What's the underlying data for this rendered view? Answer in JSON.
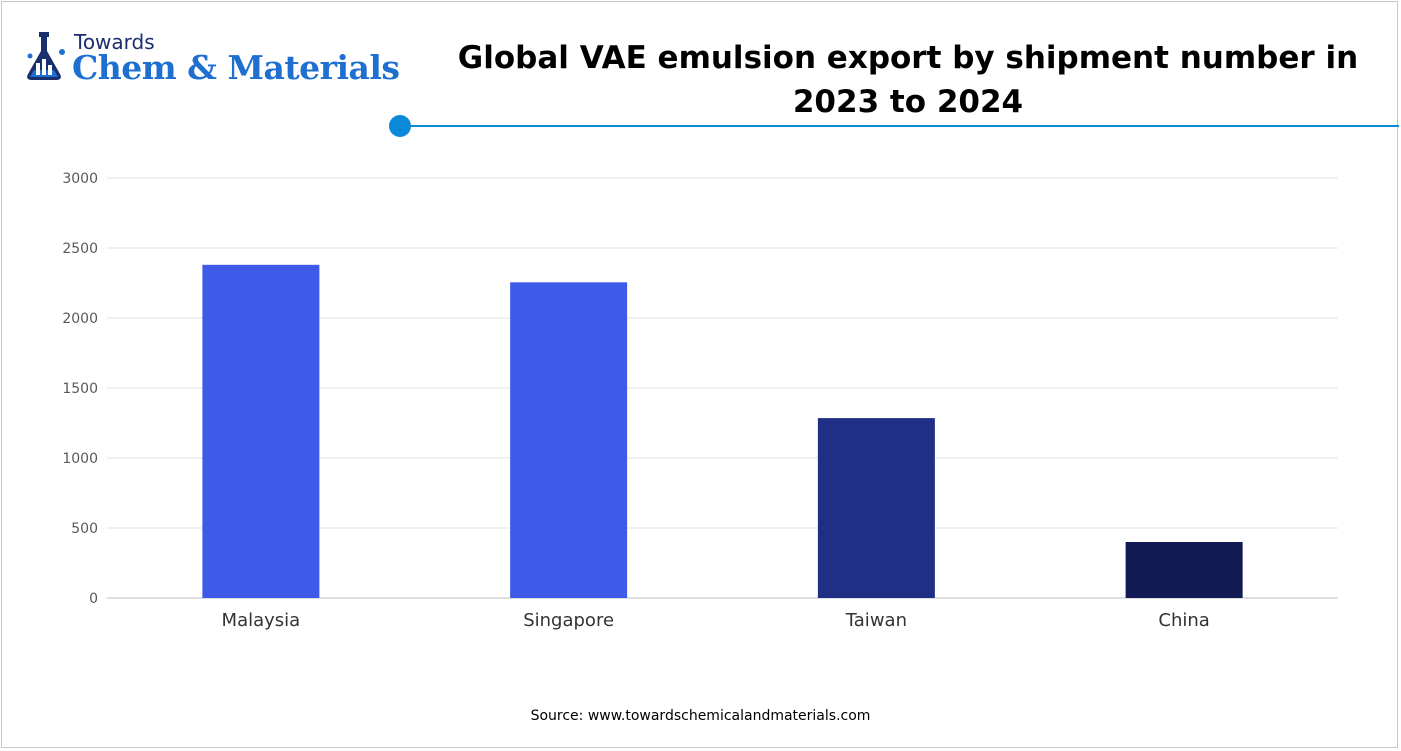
{
  "brand": {
    "small": "Towards",
    "big": "Chem & Materials"
  },
  "title": "Global VAE emulsion export by shipment number in 2023 to 2024",
  "source": "Source: www.towardschemicalandmaterials.com",
  "colors": {
    "accent": "#0b88d8",
    "gridline": "#e3e3e3",
    "axis_text": "#595959"
  },
  "chart_data": {
    "type": "bar",
    "title": "Global VAE emulsion export by shipment number in 2023 to 2024",
    "categories": [
      "Malaysia",
      "Singapore",
      "Taiwan",
      "China"
    ],
    "values": [
      2380,
      2255,
      1285,
      400
    ],
    "bar_colors": [
      "#3d5ae8",
      "#3d5ae8",
      "#1f2f86",
      "#111a52"
    ],
    "xlabel": "",
    "ylabel": "",
    "ylim": [
      0,
      3000
    ],
    "yticks": [
      "0",
      "500",
      "1000",
      "1500",
      "2000",
      "2500",
      "3000"
    ],
    "grid": true,
    "legend": "none"
  }
}
